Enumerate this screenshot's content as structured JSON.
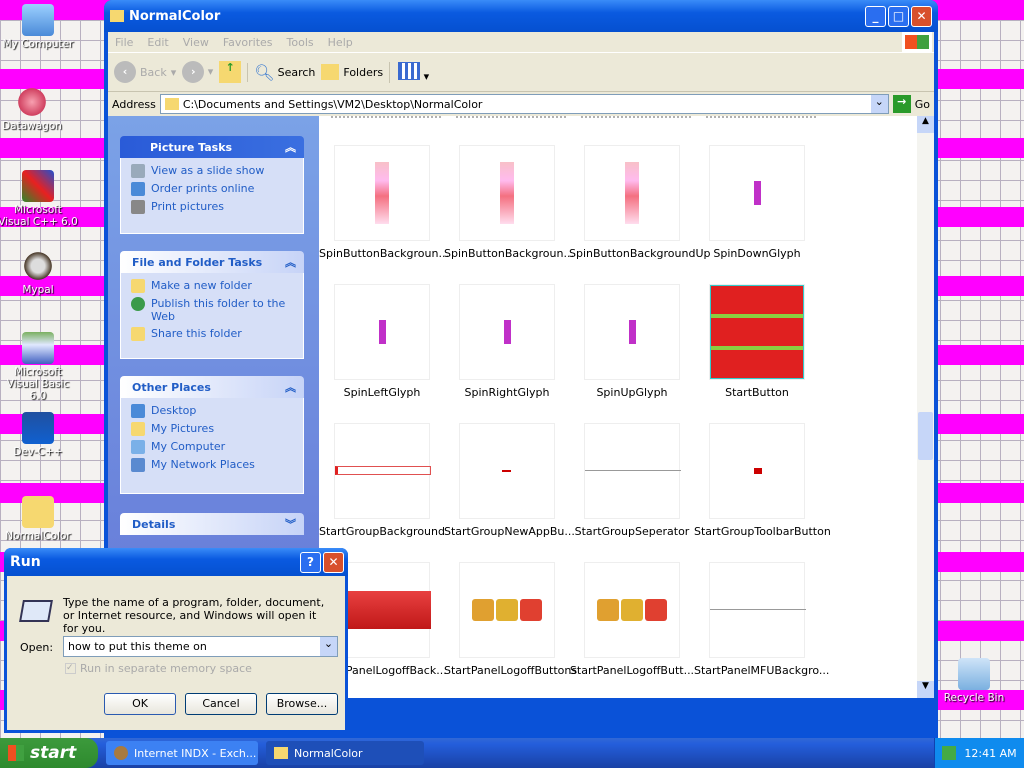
{
  "desktop": {
    "icons": [
      {
        "label": "My Computer",
        "icon": "computer-icon"
      },
      {
        "label": "Datawagon",
        "icon": "datawagon-icon"
      },
      {
        "label": "Microsoft Visual C++ 6.0",
        "icon": "visual-cpp-icon"
      },
      {
        "label": "Mypal",
        "icon": "mypal-icon"
      },
      {
        "label": "Microsoft Visual Basic 6.0",
        "icon": "visual-basic-icon"
      },
      {
        "label": "Dev-C++",
        "icon": "devcpp-icon"
      },
      {
        "label": "NormalColor",
        "icon": "folder-icon"
      },
      {
        "label": "Recycle Bin",
        "icon": "recycle-bin-icon"
      }
    ]
  },
  "explorer": {
    "title": "NormalColor",
    "menu": [
      "File",
      "Edit",
      "View",
      "Favorites",
      "Tools",
      "Help"
    ],
    "toolbar": {
      "back": "Back",
      "search": "Search",
      "folders": "Folders"
    },
    "address": {
      "label": "Address",
      "value": "C:\\Documents and Settings\\VM2\\Desktop\\NormalColor",
      "go": "Go"
    },
    "tasks": [
      {
        "title": "Picture Tasks",
        "items": [
          "View as a slide show",
          "Order prints online",
          "Print pictures"
        ]
      },
      {
        "title": "File and Folder Tasks",
        "items": [
          "Make a new folder",
          "Publish this folder to the Web",
          "Share this folder"
        ]
      },
      {
        "title": "Other Places",
        "items": [
          "Desktop",
          "My Pictures",
          "My Computer",
          "My Network Places"
        ]
      },
      {
        "title": "Details",
        "items": []
      }
    ],
    "files": [
      "SpinButtonBackgroun...",
      "SpinButtonBackgroun...",
      "SpinButtonBackgroundUp",
      "SpinDownGlyph",
      "SpinLeftGlyph",
      "SpinRightGlyph",
      "SpinUpGlyph",
      "StartButton",
      "StartGroupBackground",
      "StartGroupNewAppBu...",
      "StartGroupSeperator",
      "StartGroupToolbarButton",
      "StartPanelLogoffBack...",
      "StartPanelLogoffButtons",
      "StartPanelLogoffButt...",
      "StartPanelMFUBackgro..."
    ]
  },
  "run": {
    "title": "Run",
    "description": "Type the name of a program, folder, document, or Internet resource, and Windows will open it for you.",
    "open_label": "Open:",
    "open_value": "how to put this theme on",
    "checkbox": "Run in separate memory space",
    "checkbox_checked": true,
    "checkbox_disabled": true,
    "ok": "OK",
    "cancel": "Cancel",
    "browse": "Browse..."
  },
  "taskbar": {
    "start": "start",
    "tasks": [
      "Internet INDX - Exch...",
      "NormalColor"
    ],
    "clock": "12:41 AM"
  }
}
